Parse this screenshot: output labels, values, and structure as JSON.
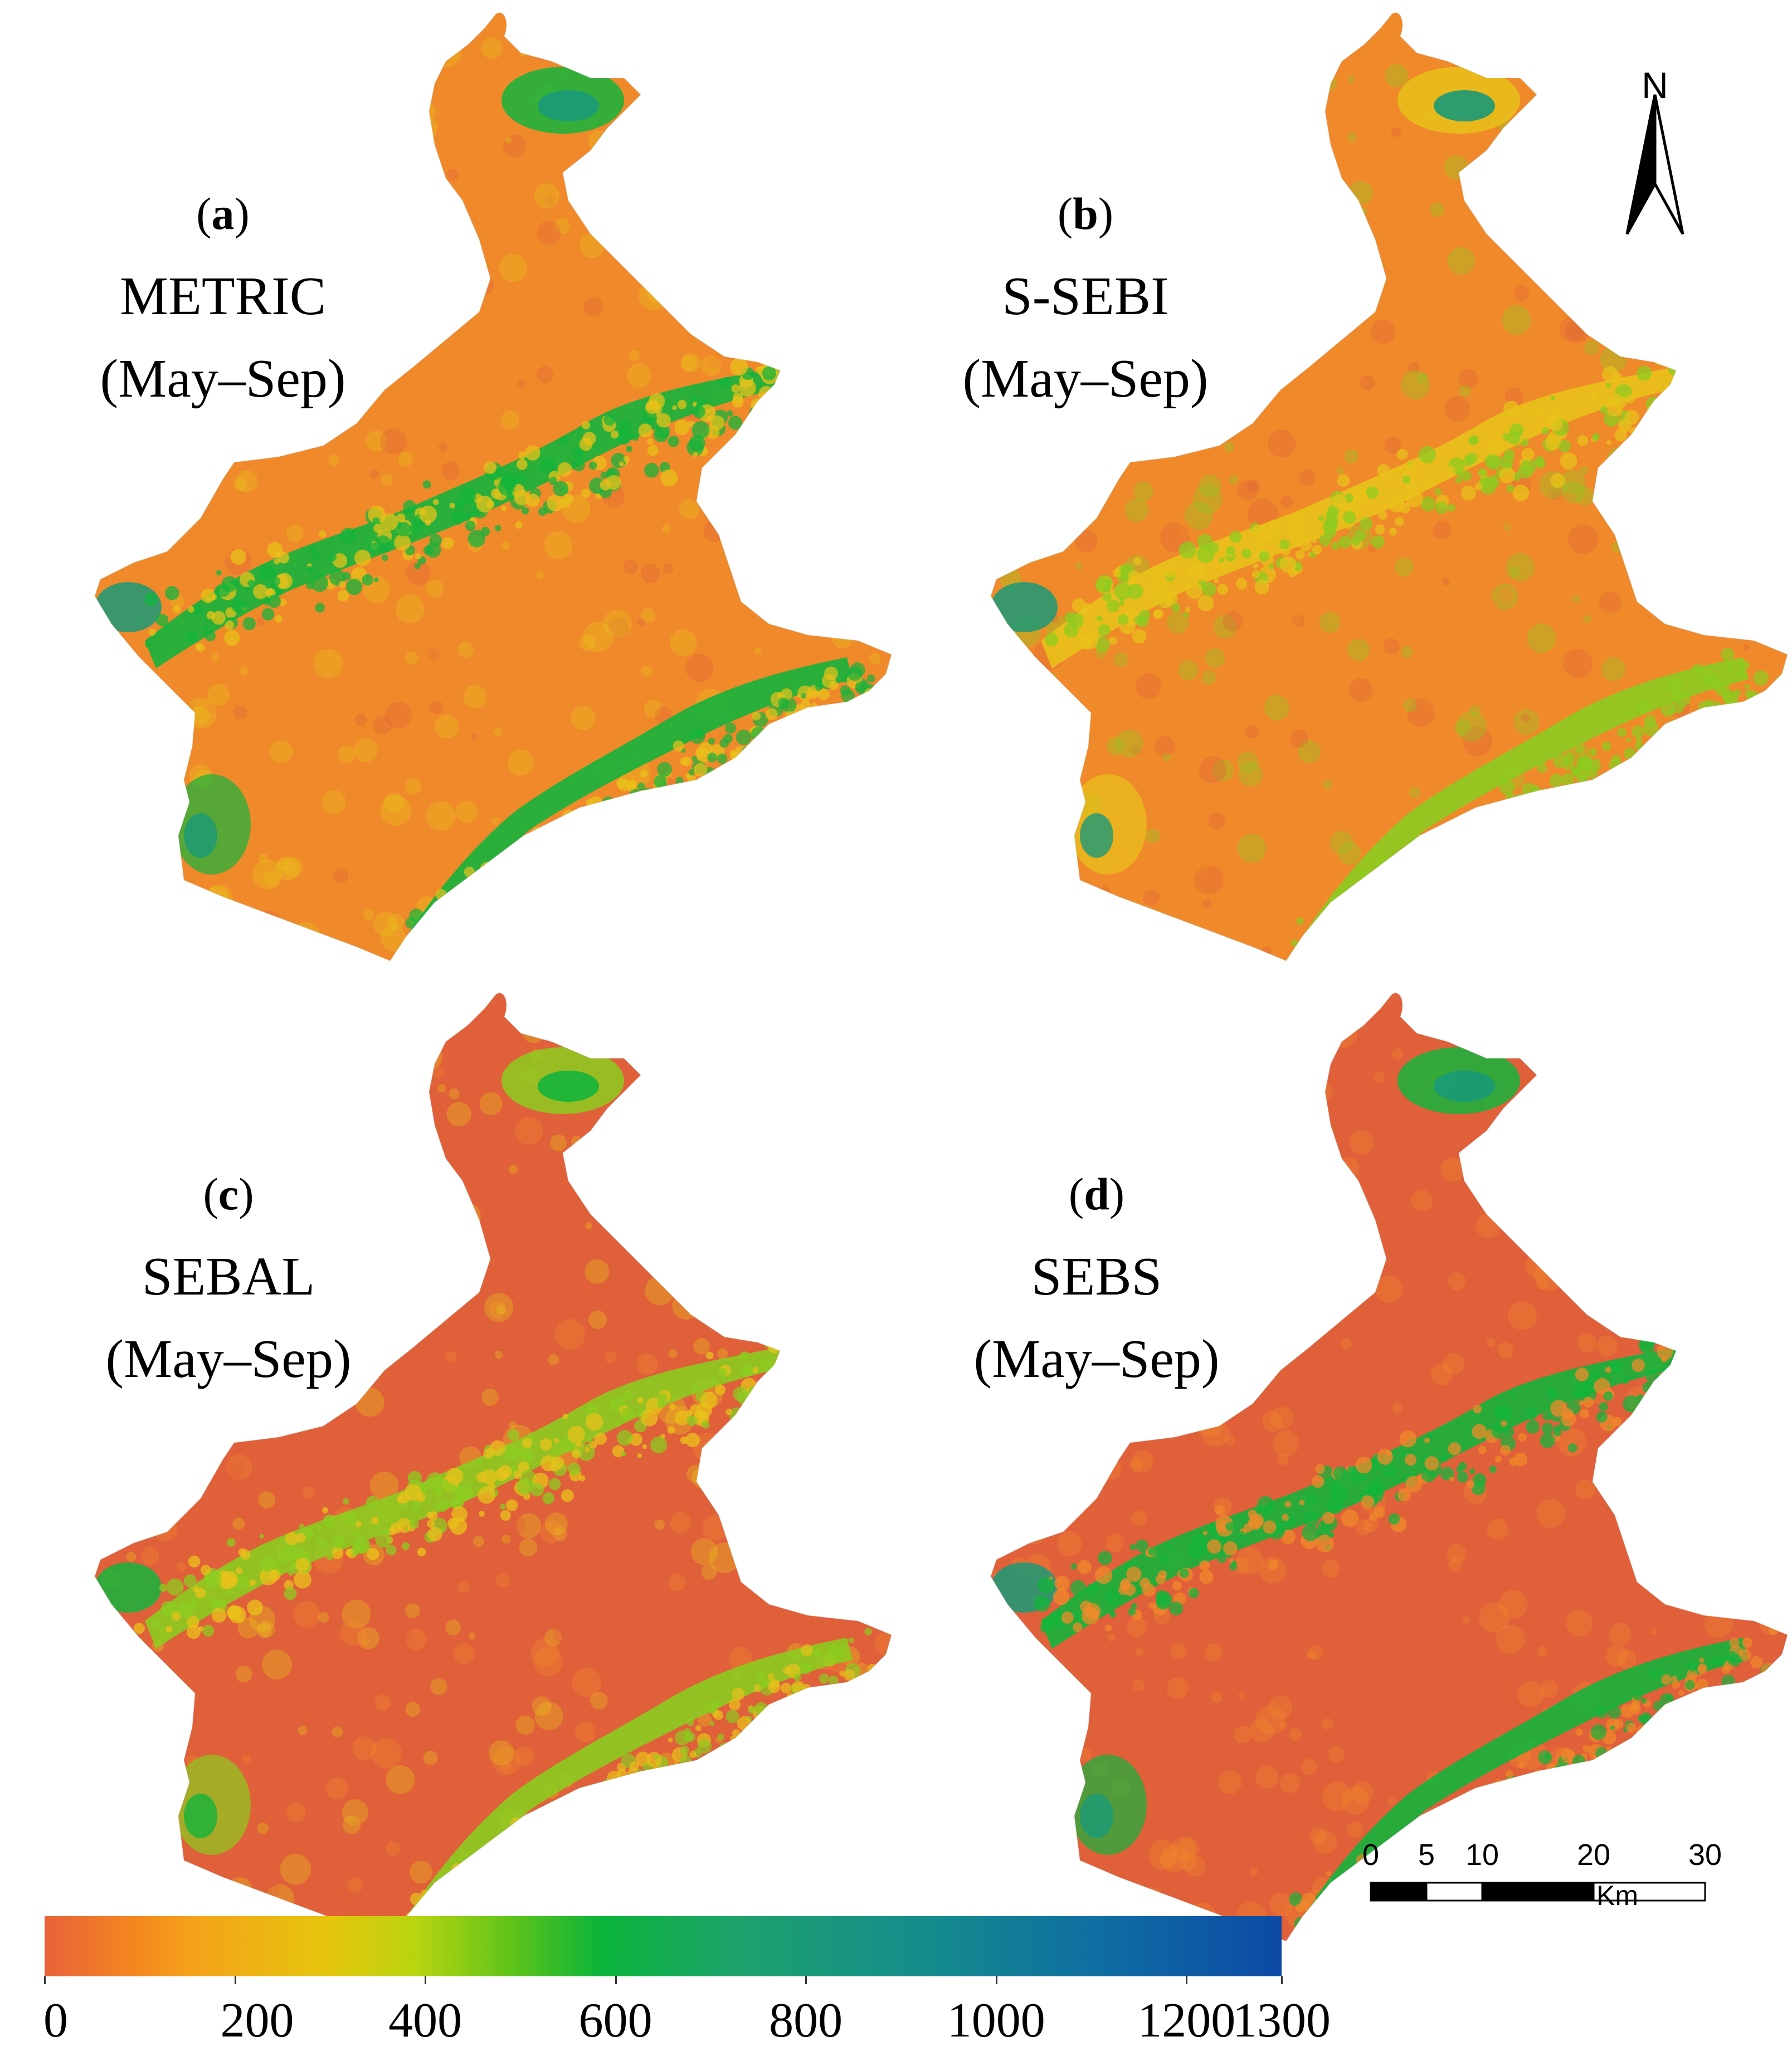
{
  "panels": [
    {
      "id": "a",
      "letter": "a",
      "model": "METRIC",
      "period": "(May–Sep)",
      "palette": "metric"
    },
    {
      "id": "b",
      "letter": "b",
      "model": "S-SEBI",
      "period": "(May–Sep)",
      "palette": "ssebi"
    },
    {
      "id": "c",
      "letter": "c",
      "model": "SEBAL",
      "period": "(May–Sep)",
      "palette": "sebal"
    },
    {
      "id": "d",
      "letter": "d",
      "model": "SEBS",
      "period": "(May–Sep)",
      "palette": "sebs"
    }
  ],
  "north_arrow": {
    "label": "N"
  },
  "scale_bar": {
    "ticks": [
      "0",
      "5",
      "10",
      "20",
      "30"
    ],
    "tick_values": [
      0,
      5,
      10,
      20,
      30
    ],
    "unit": "Km"
  },
  "legend": {
    "min": 0,
    "max": 1300,
    "labels": [
      "0",
      "200",
      "400",
      "600",
      "800",
      "1000",
      "1200",
      "1300"
    ],
    "values": [
      0,
      200,
      400,
      600,
      800,
      1000,
      1200,
      1300
    ],
    "colors": [
      "#e8623a",
      "#f5891e",
      "#e5c60c",
      "#0ab43a",
      "#1da26c",
      "#158e8a",
      "#0f6ea2",
      "#0d4aa6"
    ]
  },
  "colors": {
    "dry_red": "#e0603a",
    "dry_orange": "#f0892a",
    "yellow": "#e8c21a",
    "light_green": "#8ccc20",
    "green": "#14b43c",
    "teal": "#1a9a78",
    "blue": "#0f6ea2"
  }
}
